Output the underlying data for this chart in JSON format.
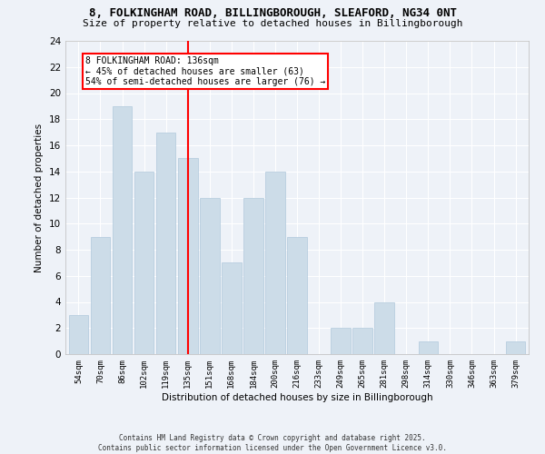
{
  "title1": "8, FOLKINGHAM ROAD, BILLINGBOROUGH, SLEAFORD, NG34 0NT",
  "title2": "Size of property relative to detached houses in Billingborough",
  "xlabel": "Distribution of detached houses by size in Billingborough",
  "ylabel": "Number of detached properties",
  "categories": [
    "54sqm",
    "70sqm",
    "86sqm",
    "102sqm",
    "119sqm",
    "135sqm",
    "151sqm",
    "168sqm",
    "184sqm",
    "200sqm",
    "216sqm",
    "233sqm",
    "249sqm",
    "265sqm",
    "281sqm",
    "298sqm",
    "314sqm",
    "330sqm",
    "346sqm",
    "363sqm",
    "379sqm"
  ],
  "values": [
    3,
    9,
    19,
    14,
    17,
    15,
    12,
    7,
    12,
    14,
    9,
    0,
    2,
    2,
    4,
    0,
    1,
    0,
    0,
    0,
    1
  ],
  "bar_color": "#ccdce8",
  "bar_edge_color": "#b0c8dc",
  "ref_line_index": 5,
  "ref_line_label": "8 FOLKINGHAM ROAD: 136sqm",
  "annotation_line1": "← 45% of detached houses are smaller (63)",
  "annotation_line2": "54% of semi-detached houses are larger (76) →",
  "ylim": [
    0,
    24
  ],
  "yticks": [
    0,
    2,
    4,
    6,
    8,
    10,
    12,
    14,
    16,
    18,
    20,
    22,
    24
  ],
  "footer1": "Contains HM Land Registry data © Crown copyright and database right 2025.",
  "footer2": "Contains public sector information licensed under the Open Government Licence v3.0.",
  "bg_color": "#eef2f8",
  "grid_color": "#ffffff",
  "title_fontsize": 9,
  "subtitle_fontsize": 8
}
